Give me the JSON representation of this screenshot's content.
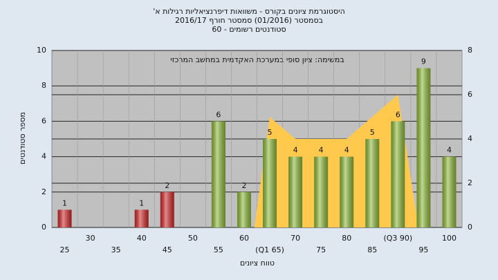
{
  "chart_data": {
    "type": "bar",
    "title": "היסטוגרמת ציונים בקורס - משוואות דיפרנציאליות רגילות א'",
    "subtitle": [
      "בסמסטר (01/2016) סמסטר חורף 2016/17",
      "סטודנטים רשומים - 60"
    ],
    "annotation": "במשימה: ציון סופי במערכת האקדמית במחשב המרכזי",
    "x_label": "טווח ציונים",
    "y_label": "מספר סטודנטים",
    "categories": [
      "25",
      "30",
      "35",
      "40",
      "45",
      "50",
      "55",
      "60",
      "(Q1 65)",
      "70",
      "75",
      "80",
      "85",
      "(Q3 90)",
      "95",
      "100"
    ],
    "values": [
      1,
      0,
      0,
      1,
      2,
      0,
      6,
      2,
      5,
      4,
      4,
      4,
      5,
      6,
      9,
      4
    ],
    "colors": [
      "#d42a2a",
      "#8fbb3a",
      "#8fbb3a",
      "#d42a2a",
      "#d42a2a",
      "#8fbb3a",
      "#8fbb3a",
      "#8fbb3a",
      "#8fbb3a",
      "#8fbb3a",
      "#8fbb3a",
      "#8fbb3a",
      "#8fbb3a",
      "#8fbb3a",
      "#8fbb3a",
      "#8fbb3a"
    ],
    "area": {
      "color": "#ffc94d",
      "axis": "y2",
      "values": [
        null,
        null,
        null,
        null,
        null,
        null,
        null,
        null,
        5,
        4,
        4,
        4,
        5,
        6,
        null,
        null
      ]
    },
    "ylim": [
      0,
      10
    ],
    "yticks": [
      0,
      2,
      4,
      6,
      8,
      10
    ],
    "y2lim": [
      0,
      8
    ],
    "y2ticks": [
      0,
      2,
      4,
      6,
      8
    ],
    "grid": true
  }
}
